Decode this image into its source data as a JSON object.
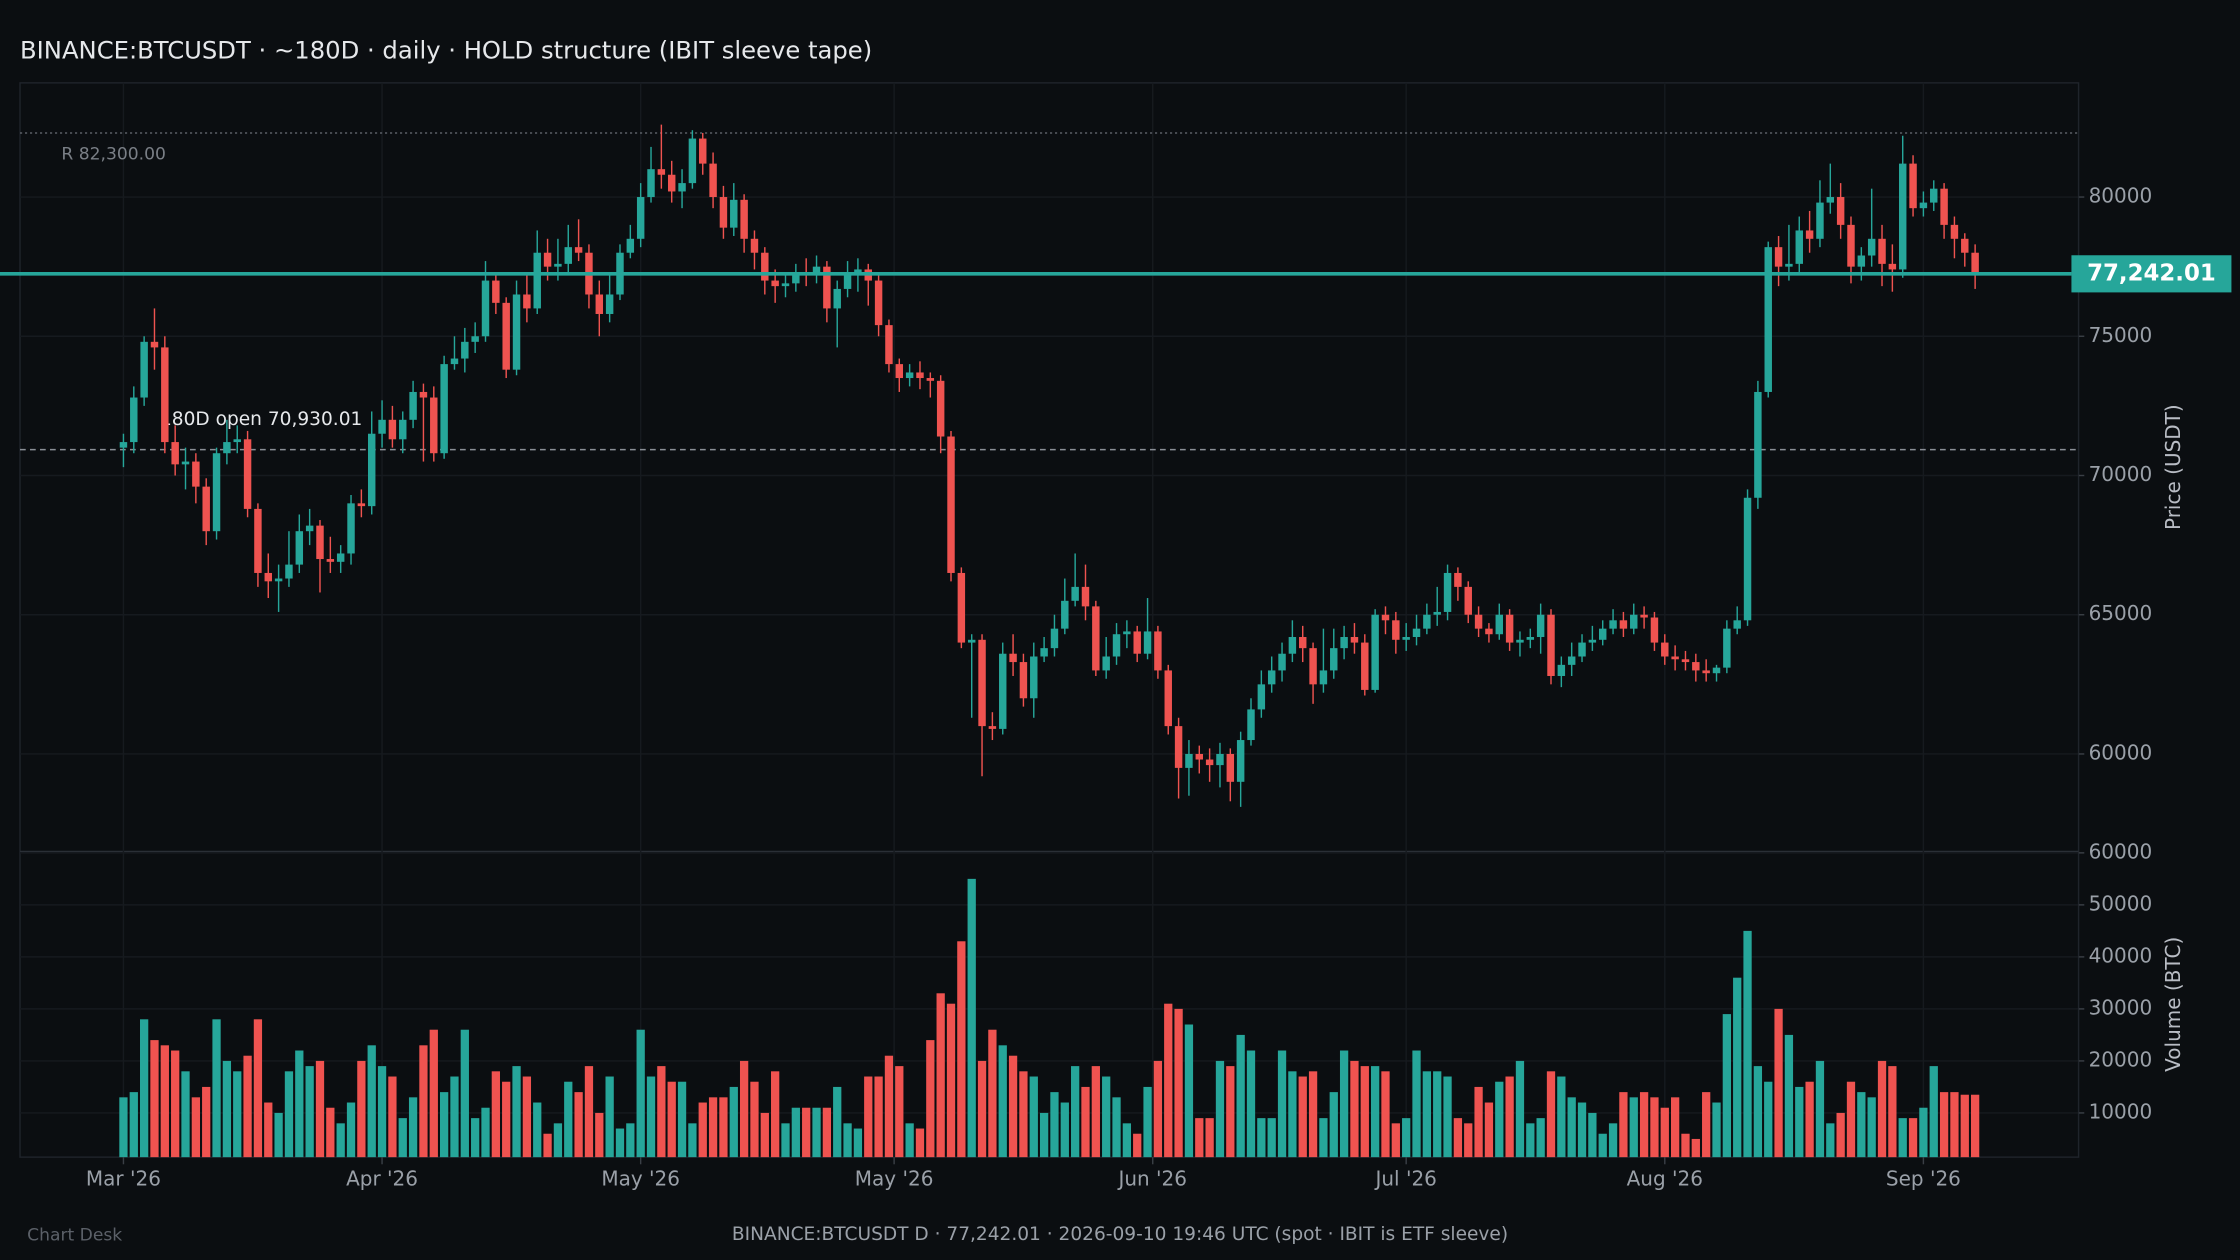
{
  "chart_data": {
    "type": "candlestick",
    "title": "BINANCE:BTCUSDT  ·  ~180D  ·  daily  ·  HOLD structure  (IBIT sleeve tape)",
    "footer": "BINANCE:BTCUSDT D · 77,242.01 · 2026-09-10 19:46 UTC  (spot · IBIT is ETF sleeve)",
    "brand": "Chart Desk",
    "ylabel": "Price (USDT)",
    "volume_label": "Volume (BTC)",
    "up_color": "#26a69a",
    "down_color": "#ef5350",
    "grid": true,
    "ylim": [
      56500,
      84100
    ],
    "yticks": [
      60000,
      65000,
      70000,
      75000,
      80000
    ],
    "volume_ylim": [
      1500,
      60000
    ],
    "volume_yticks": [
      10000,
      20000,
      30000,
      40000,
      50000,
      60000
    ],
    "xlim": [
      -10,
      189
    ],
    "xticks": [
      {
        "value": 0,
        "label": "Mar '26"
      },
      {
        "value": 25,
        "label": "Apr '26"
      },
      {
        "value": 50,
        "label": "May '26"
      },
      {
        "value": 74.5,
        "label": "May '26"
      },
      {
        "value": 99.5,
        "label": "Jun '26"
      },
      {
        "value": 124,
        "label": "Jul '26"
      },
      {
        "value": 149,
        "label": "Aug '26"
      },
      {
        "value": 174,
        "label": "Sep '26"
      }
    ],
    "levels": [
      {
        "value": 82300,
        "label": "R 82,300.00",
        "style": "dotted"
      },
      {
        "value": 70930.01,
        "label": "180D open 70,930.01",
        "style": "dashed"
      }
    ],
    "last_price": {
      "value": 77242.01,
      "label": "77,242.01"
    },
    "candles": [
      [
        71000,
        71500,
        70300,
        71200
      ],
      [
        71200,
        73200,
        70800,
        72800
      ],
      [
        72800,
        75000,
        72500,
        74800
      ],
      [
        74800,
        76000,
        73800,
        74600
      ],
      [
        74600,
        75000,
        70800,
        71200
      ],
      [
        71200,
        71800,
        70000,
        70400
      ],
      [
        70400,
        71000,
        69500,
        70500
      ],
      [
        70500,
        70800,
        69000,
        69600
      ],
      [
        69600,
        69900,
        67500,
        68000
      ],
      [
        68000,
        71000,
        67700,
        70800
      ],
      [
        70800,
        72000,
        70400,
        71200
      ],
      [
        71200,
        71800,
        70800,
        71300
      ],
      [
        71300,
        71600,
        68500,
        68800
      ],
      [
        68800,
        69000,
        66000,
        66500
      ],
      [
        66500,
        67200,
        65600,
        66200
      ],
      [
        66200,
        66800,
        65100,
        66300
      ],
      [
        66300,
        68000,
        66000,
        66800
      ],
      [
        66800,
        68600,
        66500,
        68000
      ],
      [
        68000,
        68800,
        67500,
        68200
      ],
      [
        68200,
        68400,
        65800,
        67000
      ],
      [
        67000,
        67800,
        66500,
        66900
      ],
      [
        66900,
        67500,
        66500,
        67200
      ],
      [
        67200,
        69300,
        66800,
        69000
      ],
      [
        69000,
        69500,
        68500,
        68900
      ],
      [
        68900,
        72300,
        68600,
        71500
      ],
      [
        71500,
        72700,
        71000,
        72000
      ],
      [
        72000,
        72500,
        71000,
        71300
      ],
      [
        71300,
        72300,
        70800,
        72000
      ],
      [
        72000,
        73400,
        71700,
        73000
      ],
      [
        73000,
        73300,
        70500,
        72800
      ],
      [
        72800,
        73200,
        70500,
        70800
      ],
      [
        70800,
        74300,
        70600,
        74000
      ],
      [
        74000,
        75000,
        73800,
        74200
      ],
      [
        74200,
        75300,
        73700,
        74800
      ],
      [
        74800,
        75500,
        74400,
        75000
      ],
      [
        75000,
        77700,
        74800,
        77000
      ],
      [
        77000,
        77300,
        75800,
        76200
      ],
      [
        76200,
        76400,
        73500,
        73800
      ],
      [
        73800,
        77000,
        73600,
        76500
      ],
      [
        76500,
        77300,
        75500,
        76000
      ],
      [
        76000,
        78800,
        75800,
        78000
      ],
      [
        78000,
        78500,
        77000,
        77500
      ],
      [
        77500,
        78500,
        77000,
        77600
      ],
      [
        77600,
        79000,
        77200,
        78200
      ],
      [
        78200,
        79200,
        77700,
        78000
      ],
      [
        78000,
        78300,
        76000,
        76500
      ],
      [
        76500,
        77000,
        75000,
        75800
      ],
      [
        75800,
        77200,
        75500,
        76500
      ],
      [
        76500,
        78300,
        76300,
        78000
      ],
      [
        78000,
        79000,
        77800,
        78500
      ],
      [
        78500,
        80500,
        78200,
        80000
      ],
      [
        80000,
        81800,
        79800,
        81000
      ],
      [
        81000,
        82600,
        80300,
        80800
      ],
      [
        80800,
        81300,
        79800,
        80200
      ],
      [
        80200,
        81000,
        79600,
        80500
      ],
      [
        80500,
        82400,
        80300,
        82100
      ],
      [
        82100,
        82300,
        80800,
        81200
      ],
      [
        81200,
        81600,
        79600,
        80000
      ],
      [
        80000,
        80400,
        78500,
        78900
      ],
      [
        78900,
        80500,
        78600,
        79900
      ],
      [
        79900,
        80100,
        78000,
        78500
      ],
      [
        78500,
        78800,
        77400,
        78000
      ],
      [
        78000,
        78200,
        76500,
        77000
      ],
      [
        77000,
        77400,
        76200,
        76800
      ],
      [
        76800,
        77300,
        76400,
        76900
      ],
      [
        76900,
        77600,
        76600,
        77300
      ],
      [
        77300,
        77800,
        76800,
        77200
      ],
      [
        77200,
        77900,
        76900,
        77500
      ],
      [
        77500,
        77700,
        75500,
        76000
      ],
      [
        76000,
        77000,
        74600,
        76700
      ],
      [
        76700,
        77700,
        76400,
        77200
      ],
      [
        77200,
        77800,
        76600,
        77400
      ],
      [
        77400,
        77600,
        76100,
        77000
      ],
      [
        77000,
        77200,
        75000,
        75400
      ],
      [
        75400,
        75600,
        73700,
        74000
      ],
      [
        74000,
        74200,
        73000,
        73500
      ],
      [
        73500,
        74000,
        73200,
        73700
      ],
      [
        73700,
        74100,
        73100,
        73500
      ],
      [
        73500,
        73700,
        72800,
        73400
      ],
      [
        73400,
        73600,
        70800,
        71400
      ],
      [
        71400,
        71600,
        66200,
        66500
      ],
      [
        66500,
        66700,
        63800,
        64000
      ],
      [
        64000,
        64300,
        61300,
        64100
      ],
      [
        64100,
        64300,
        59200,
        61000
      ],
      [
        61000,
        61500,
        60500,
        60900
      ],
      [
        60900,
        64000,
        60700,
        63600
      ],
      [
        63600,
        64300,
        62800,
        63300
      ],
      [
        63300,
        63600,
        61700,
        62000
      ],
      [
        62000,
        64000,
        61300,
        63500
      ],
      [
        63500,
        64200,
        63300,
        63800
      ],
      [
        63800,
        65000,
        63500,
        64500
      ],
      [
        64500,
        66300,
        64300,
        65500
      ],
      [
        65500,
        67200,
        65300,
        66000
      ],
      [
        66000,
        66800,
        64800,
        65300
      ],
      [
        65300,
        65500,
        62800,
        63000
      ],
      [
        63000,
        64200,
        62700,
        63500
      ],
      [
        63500,
        64700,
        63200,
        64300
      ],
      [
        64300,
        64800,
        63800,
        64400
      ],
      [
        64400,
        64600,
        63300,
        63600
      ],
      [
        63600,
        65600,
        63400,
        64400
      ],
      [
        64400,
        64600,
        62700,
        63000
      ],
      [
        63000,
        63200,
        60700,
        61000
      ],
      [
        61000,
        61300,
        58400,
        59500
      ],
      [
        59500,
        60500,
        58500,
        60000
      ],
      [
        60000,
        60300,
        59300,
        59800
      ],
      [
        59800,
        60200,
        59000,
        59600
      ],
      [
        59600,
        60400,
        58800,
        60000
      ],
      [
        60000,
        60200,
        58300,
        59000
      ],
      [
        59000,
        60800,
        58100,
        60500
      ],
      [
        60500,
        62000,
        60300,
        61600
      ],
      [
        61600,
        63000,
        61300,
        62500
      ],
      [
        62500,
        63500,
        62200,
        63000
      ],
      [
        63000,
        64000,
        62600,
        63600
      ],
      [
        63600,
        64800,
        63300,
        64200
      ],
      [
        64200,
        64600,
        63300,
        63800
      ],
      [
        63800,
        64000,
        61800,
        62500
      ],
      [
        62500,
        64500,
        62200,
        63000
      ],
      [
        63000,
        64500,
        62700,
        63800
      ],
      [
        63800,
        64600,
        63400,
        64200
      ],
      [
        64200,
        64700,
        63600,
        64000
      ],
      [
        64000,
        64300,
        62100,
        62300
      ],
      [
        62300,
        65200,
        62200,
        65000
      ],
      [
        65000,
        65300,
        64300,
        64800
      ],
      [
        64800,
        65100,
        63600,
        64100
      ],
      [
        64100,
        64700,
        63700,
        64200
      ],
      [
        64200,
        65000,
        63900,
        64500
      ],
      [
        64500,
        65400,
        64300,
        65000
      ],
      [
        65000,
        66000,
        64600,
        65100
      ],
      [
        65100,
        66800,
        64800,
        66500
      ],
      [
        66500,
        66700,
        65500,
        66000
      ],
      [
        66000,
        66200,
        64700,
        65000
      ],
      [
        65000,
        65300,
        64200,
        64500
      ],
      [
        64500,
        64700,
        64000,
        64300
      ],
      [
        64300,
        65400,
        64100,
        65000
      ],
      [
        65000,
        65200,
        63700,
        64000
      ],
      [
        64000,
        64400,
        63500,
        64100
      ],
      [
        64100,
        64500,
        63800,
        64200
      ],
      [
        64200,
        65400,
        63600,
        65000
      ],
      [
        65000,
        65200,
        62500,
        62800
      ],
      [
        62800,
        63500,
        62400,
        63200
      ],
      [
        63200,
        64000,
        62800,
        63500
      ],
      [
        63500,
        64300,
        63300,
        64000
      ],
      [
        64000,
        64600,
        63700,
        64100
      ],
      [
        64100,
        64800,
        63900,
        64500
      ],
      [
        64500,
        65200,
        64300,
        64800
      ],
      [
        64800,
        65100,
        64200,
        64500
      ],
      [
        64500,
        65400,
        64300,
        65000
      ],
      [
        65000,
        65300,
        64500,
        64900
      ],
      [
        64900,
        65100,
        63700,
        64000
      ],
      [
        64000,
        64300,
        63200,
        63500
      ],
      [
        63500,
        63900,
        63000,
        63400
      ],
      [
        63400,
        63700,
        63000,
        63300
      ],
      [
        63300,
        63600,
        62600,
        63000
      ],
      [
        63000,
        63400,
        62600,
        62900
      ],
      [
        62900,
        63200,
        62600,
        63100
      ],
      [
        63100,
        64800,
        62900,
        64500
      ],
      [
        64500,
        65300,
        64300,
        64800
      ],
      [
        64800,
        69500,
        64600,
        69200
      ],
      [
        69200,
        73400,
        68800,
        73000
      ],
      [
        73000,
        78400,
        72800,
        78200
      ],
      [
        78200,
        78600,
        76800,
        77500
      ],
      [
        77500,
        79000,
        77000,
        77600
      ],
      [
        77600,
        79300,
        77300,
        78800
      ],
      [
        78800,
        79500,
        78000,
        78500
      ],
      [
        78500,
        80600,
        78200,
        79800
      ],
      [
        79800,
        81200,
        79400,
        80000
      ],
      [
        80000,
        80500,
        78500,
        79000
      ],
      [
        79000,
        79300,
        76900,
        77500
      ],
      [
        77500,
        78200,
        77000,
        77900
      ],
      [
        77900,
        80300,
        77500,
        78500
      ],
      [
        78500,
        79000,
        76800,
        77600
      ],
      [
        77600,
        78300,
        76600,
        77400
      ],
      [
        77400,
        82200,
        77100,
        81200
      ],
      [
        81200,
        81500,
        79300,
        79600
      ],
      [
        79600,
        80200,
        79300,
        79800
      ],
      [
        79800,
        80600,
        79500,
        80300
      ],
      [
        80300,
        80500,
        78500,
        79000
      ],
      [
        79000,
        79300,
        77800,
        78500
      ],
      [
        78500,
        78700,
        77500,
        78000
      ],
      [
        78000,
        78300,
        76700,
        77242.01
      ]
    ],
    "volume": [
      13000,
      14000,
      28000,
      24000,
      23000,
      22000,
      18000,
      13000,
      15000,
      28000,
      20000,
      18000,
      21000,
      28000,
      12000,
      10000,
      18000,
      22000,
      19000,
      20000,
      11000,
      8000,
      12000,
      20000,
      23000,
      19000,
      17000,
      9000,
      13000,
      23000,
      26000,
      14000,
      17000,
      26000,
      9000,
      11000,
      18000,
      16000,
      19000,
      17000,
      12000,
      6000,
      8000,
      16000,
      14000,
      19000,
      10000,
      17000,
      7000,
      8000,
      26000,
      17000,
      19000,
      16000,
      16000,
      8000,
      12000,
      13000,
      13000,
      15000,
      20000,
      16000,
      10000,
      18000,
      8000,
      11000,
      11000,
      11000,
      11000,
      15000,
      8000,
      7000,
      17000,
      17000,
      21000,
      19000,
      8000,
      7000,
      24000,
      33000,
      31000,
      43000,
      55000,
      20000,
      26000,
      23000,
      21000,
      18000,
      17000,
      10000,
      14000,
      12000,
      19000,
      15000,
      19000,
      17000,
      13000,
      8000,
      6000,
      15000,
      20000,
      31000,
      30000,
      27000,
      9000,
      9000,
      20000,
      19000,
      25000,
      22000,
      9000,
      9000,
      22000,
      18000,
      17000,
      18000,
      9000,
      14000,
      22000,
      20000,
      19000,
      19000,
      18000,
      8000,
      9000,
      22000,
      18000,
      18000,
      17000,
      9000,
      8000,
      15000,
      12000,
      16000,
      17000,
      20000,
      8000,
      9000,
      18000,
      17000,
      13000,
      12000,
      10000,
      6000,
      8000,
      14000,
      13000,
      14000,
      13000,
      11000,
      13000,
      6000,
      5000,
      14000,
      12000,
      29000,
      36000,
      45000,
      19000,
      16000,
      30000,
      25000,
      15000,
      16000,
      20000,
      8000,
      10000,
      16000,
      14000,
      13000,
      20000,
      19000,
      9000,
      9000,
      11000,
      19000,
      14000,
      14000,
      13500,
      13500
    ]
  }
}
